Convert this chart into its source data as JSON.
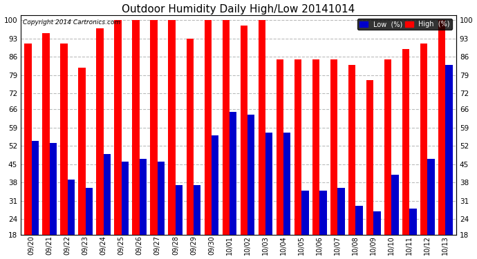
{
  "title": "Outdoor Humidity Daily High/Low 20141014",
  "copyright": "Copyright 2014 Cartronics.com",
  "dates": [
    "09/20",
    "09/21",
    "09/22",
    "09/23",
    "09/24",
    "09/25",
    "09/26",
    "09/27",
    "09/28",
    "09/29",
    "09/30",
    "10/01",
    "10/02",
    "10/03",
    "10/04",
    "10/05",
    "10/06",
    "10/07",
    "10/08",
    "10/09",
    "10/10",
    "10/11",
    "10/12",
    "10/13"
  ],
  "high": [
    91,
    95,
    91,
    82,
    97,
    100,
    100,
    100,
    100,
    93,
    100,
    100,
    98,
    100,
    85,
    85,
    85,
    85,
    83,
    77,
    85,
    89,
    91,
    100
  ],
  "low": [
    54,
    53,
    39,
    36,
    49,
    46,
    47,
    46,
    37,
    37,
    56,
    65,
    64,
    57,
    57,
    35,
    35,
    36,
    29,
    27,
    41,
    28,
    47,
    83
  ],
  "high_color": "#ff0000",
  "low_color": "#0000cc",
  "bg_color": "#ffffff",
  "plot_bg_color": "#ffffff",
  "grid_color": "#bbbbbb",
  "ylim_min": 18,
  "ylim_max": 102,
  "yticks": [
    18,
    24,
    31,
    38,
    45,
    52,
    59,
    66,
    72,
    79,
    86,
    93,
    100
  ],
  "bar_width": 0.4,
  "title_fontsize": 11,
  "tick_fontsize": 7.5,
  "xtick_fontsize": 7,
  "legend_low_label": "Low  (%)",
  "legend_high_label": "High  (%)"
}
